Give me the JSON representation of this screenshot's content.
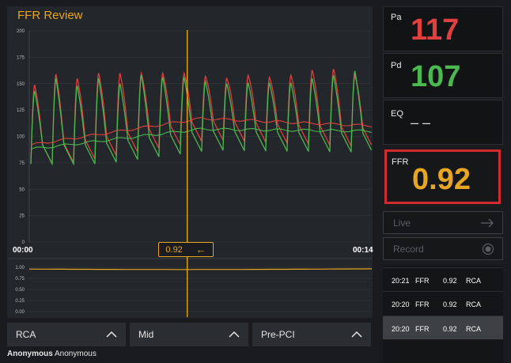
{
  "app": {
    "title": "FFR Review"
  },
  "chart_data": {
    "type": "line",
    "title": "",
    "x_unit": "time",
    "x_range": [
      "00:00",
      "00:14"
    ],
    "ylim": [
      0,
      200
    ],
    "yticks": [
      0,
      25,
      50,
      75,
      100,
      125,
      150,
      175,
      200
    ],
    "series": [
      {
        "name": "Pa",
        "color": "#e0403e",
        "systolic_peaks": [
          149,
          159,
          155,
          160,
          160,
          160,
          160,
          160,
          157,
          155,
          158,
          156,
          158,
          163,
          164,
          158
        ],
        "mean_start": 92,
        "mean_mid": 117,
        "mean_end": 110
      },
      {
        "name": "Pd",
        "color": "#4cb84f",
        "systolic_peaks": [
          143,
          155,
          148,
          155,
          150,
          158,
          156,
          156,
          152,
          150,
          151,
          151,
          151,
          155,
          158,
          162
        ],
        "mean_start": 88,
        "mean_mid": 107,
        "mean_end": 105
      }
    ],
    "ratio_panel": {
      "ylim": [
        0.0,
        1.0
      ],
      "yticks": [
        0.0,
        0.25,
        0.5,
        0.75,
        1.0
      ],
      "ticklabels": [
        "0.00",
        "0.25",
        "0.50",
        "0.75",
        "1.00"
      ],
      "value": 0.96,
      "color": "#e8a521"
    },
    "cursor_fraction": 0.46
  },
  "time_start": "00:00",
  "time_end": "00:14",
  "cursor": {
    "value": "0.92",
    "arrow": "←"
  },
  "selectors": [
    {
      "label": "RCA"
    },
    {
      "label": "Mid"
    },
    {
      "label": "Pre-PCI"
    }
  ],
  "patient": {
    "first": "Anonymous",
    "last": "Anonymous"
  },
  "readings": {
    "pa_label": "Pa",
    "pa_value": "117",
    "pa_color": "#e0403e",
    "pd_label": "Pd",
    "pd_value": "107",
    "pd_color": "#4cb84f",
    "eq_label": "EQ",
    "eq_value": "– –",
    "ffr_label": "FFR",
    "ffr_value": "0.92",
    "ffr_color": "#e8a521"
  },
  "buttons": {
    "live": "Live",
    "record": "Record"
  },
  "history": [
    {
      "time": "20:21",
      "type": "FFR",
      "value": "0.92",
      "vessel": "RCA"
    },
    {
      "time": "20:20",
      "type": "FFR",
      "value": "0.92",
      "vessel": "RCA"
    },
    {
      "time": "20:20",
      "type": "FFR",
      "value": "0.92",
      "vessel": "RCA"
    }
  ]
}
